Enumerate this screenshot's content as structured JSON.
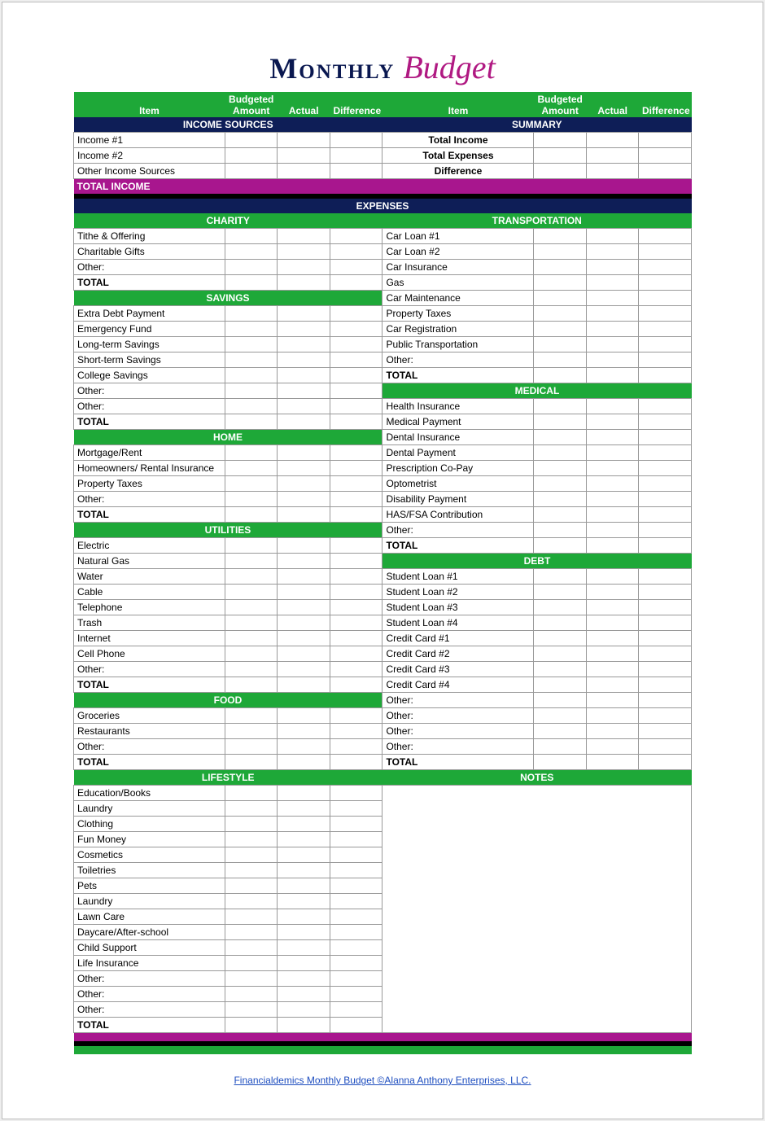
{
  "colors": {
    "green": "#1ea838",
    "navy": "#0e1e57",
    "magenta": "#a8168e",
    "black": "#000000",
    "title_navy": "#0a1850",
    "title_pink": "#b01982",
    "border": "#999999",
    "link": "#1d4dbf"
  },
  "title": {
    "word1": "Monthly",
    "word2": "Budget"
  },
  "col_headers": {
    "item": "Item",
    "budgeted": "Budgeted Amount",
    "actual": "Actual",
    "diff": "Difference"
  },
  "top": {
    "income_sources_header": "INCOME SOURCES",
    "summary_header": "SUMMARY",
    "income_rows": [
      "Income #1",
      "Income #2",
      "Other Income Sources"
    ],
    "summary_rows": [
      "Total Income",
      "Total Expenses",
      "Difference"
    ],
    "total_income_label": "TOTAL INCOME"
  },
  "expenses_header": "EXPENSES",
  "left_sections": [
    {
      "header": "CHARITY",
      "rows": [
        "Tithe & Offering",
        "Charitable Gifts",
        "Other:",
        "TOTAL"
      ]
    },
    {
      "header": "SAVINGS",
      "rows": [
        "Extra Debt Payment",
        "Emergency Fund",
        "Long-term Savings",
        "Short-term Savings",
        "College Savings",
        "Other:",
        "Other:",
        "TOTAL"
      ]
    },
    {
      "header": "HOME",
      "rows": [
        "Mortgage/Rent",
        "Homeowners/ Rental Insurance",
        "Property Taxes",
        "Other:",
        "TOTAL"
      ]
    },
    {
      "header": "UTILITIES",
      "rows": [
        "Electric",
        "Natural Gas",
        "Water",
        "Cable",
        "Telephone",
        "Trash",
        "Internet",
        "Cell Phone",
        "Other:",
        "TOTAL"
      ]
    },
    {
      "header": "FOOD",
      "rows": [
        "Groceries",
        "Restaurants",
        "Other:",
        "TOTAL"
      ]
    },
    {
      "header": "LIFESTYLE",
      "rows": [
        "Education/Books",
        "Laundry",
        "Clothing",
        "Fun Money",
        "Cosmetics",
        "Toiletries",
        "Pets",
        "Laundry",
        "Lawn Care",
        "Daycare/After-school",
        "Child Support",
        "Life Insurance",
        "Other:",
        "Other:",
        "Other:",
        "TOTAL"
      ]
    }
  ],
  "right_sections": [
    {
      "header": "TRANSPORTATION",
      "rows": [
        "Car Loan #1",
        "Car Loan #2",
        "Car Insurance",
        "Gas",
        "Car Maintenance",
        "Property Taxes",
        "Car Registration",
        "Public Transportation",
        "Other:",
        "TOTAL"
      ]
    },
    {
      "header": "MEDICAL",
      "rows": [
        "Health Insurance",
        "Medical Payment",
        "Dental Insurance",
        "Dental Payment",
        "Prescription Co-Pay",
        "Optometrist",
        "Disability Payment",
        "HAS/FSA Contribution",
        "Other:",
        "TOTAL"
      ]
    },
    {
      "header": "DEBT",
      "rows": [
        "Student Loan #1",
        "Student Loan #2",
        "Student Loan #3",
        "Student Loan #4",
        "Credit Card #1",
        "Credit Card #2",
        "Credit Card #3",
        "Credit Card #4",
        "Other:",
        "Other:",
        "Other:",
        "Other:",
        "TOTAL"
      ]
    },
    {
      "header": "NOTES",
      "notes": true
    }
  ],
  "footer": "Financialdemics Monthly Budget ©Alanna Anthony Enterprises, LLC."
}
